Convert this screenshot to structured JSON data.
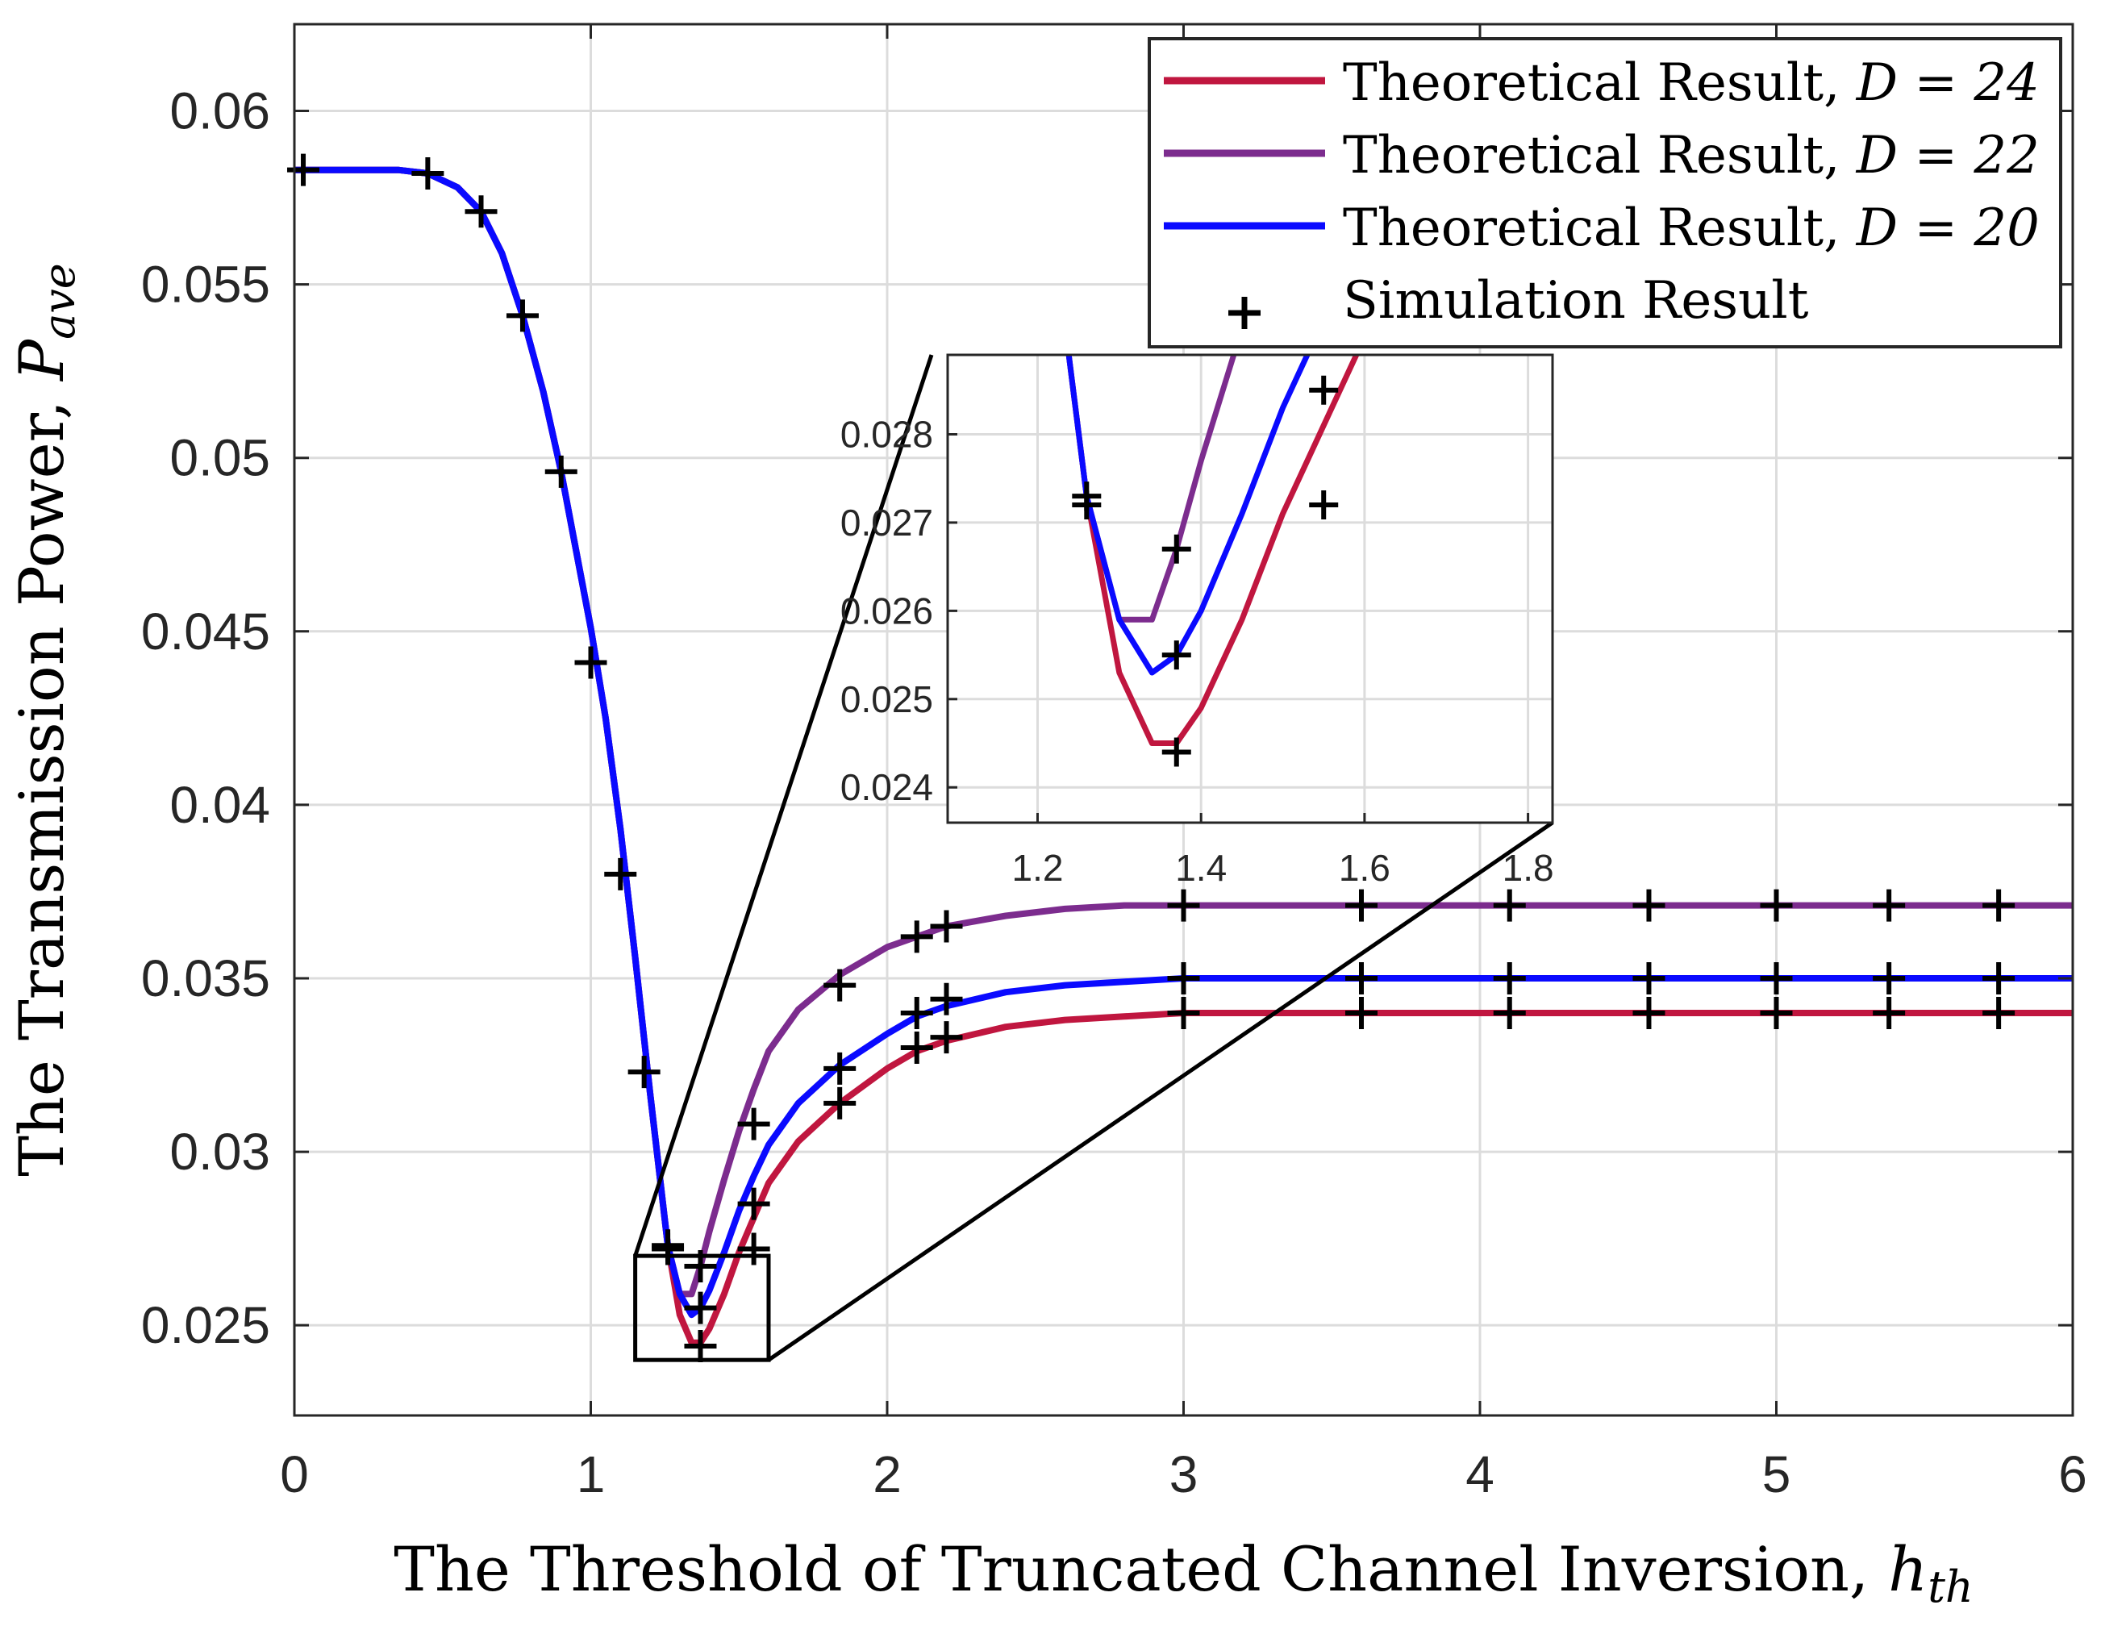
{
  "chart_data": {
    "type": "line",
    "xlabel": "The Threshold of Truncated Channel Inversion, ",
    "xlabel_var": "h",
    "xlabel_sub": "th",
    "ylabel": "The Transmission Power, ",
    "ylabel_var": "P",
    "ylabel_sub": "ave",
    "xlim": [
      0,
      6
    ],
    "ylim": [
      0.0224,
      0.0625
    ],
    "xticks": [
      "0",
      "1",
      "2",
      "3",
      "4",
      "5",
      "6"
    ],
    "yticks": [
      "0.025",
      "0.03",
      "0.035",
      "0.04",
      "0.045",
      "0.05",
      "0.055",
      "0.06"
    ],
    "legend_position": "top-right",
    "colors": {
      "d24": "#c0163f",
      "d22": "#7c2c8e",
      "d20": "#0a0aff",
      "sim": "#000000"
    },
    "series": [
      {
        "name": "Theoretical Result, ",
        "param": "D = 24",
        "key": "d24",
        "x": [
          0,
          0.35,
          0.45,
          0.55,
          0.63,
          0.7,
          0.77,
          0.84,
          0.9,
          0.96,
          1.0,
          1.05,
          1.1,
          1.15,
          1.2,
          1.26,
          1.3,
          1.34,
          1.37,
          1.4,
          1.45,
          1.5,
          1.55,
          1.6,
          1.7,
          1.84,
          2.0,
          2.1,
          2.2,
          2.4,
          2.6,
          2.8,
          3.0,
          3.5,
          4.0,
          5.0,
          6.0
        ],
        "y": [
          0.0583,
          0.0583,
          0.0582,
          0.0578,
          0.0571,
          0.0559,
          0.0541,
          0.0519,
          0.0496,
          0.0469,
          0.0451,
          0.0425,
          0.0393,
          0.0356,
          0.0317,
          0.0273,
          0.0253,
          0.0245,
          0.0245,
          0.0249,
          0.0259,
          0.0271,
          0.0281,
          0.0291,
          0.0303,
          0.0314,
          0.0324,
          0.0329,
          0.0332,
          0.0336,
          0.0338,
          0.0339,
          0.034,
          0.034,
          0.034,
          0.034,
          0.034
        ]
      },
      {
        "name": "Theoretical Result, ",
        "param": "D = 22",
        "key": "d22",
        "x": [
          0,
          0.35,
          0.45,
          0.55,
          0.63,
          0.7,
          0.77,
          0.84,
          0.9,
          0.96,
          1.0,
          1.05,
          1.1,
          1.15,
          1.2,
          1.26,
          1.3,
          1.34,
          1.37,
          1.4,
          1.45,
          1.5,
          1.55,
          1.6,
          1.7,
          1.84,
          2.0,
          2.1,
          2.2,
          2.4,
          2.6,
          2.8,
          3.0,
          3.5,
          4.0,
          5.0,
          6.0
        ],
        "y": [
          0.0583,
          0.0583,
          0.0582,
          0.0578,
          0.0571,
          0.0559,
          0.0541,
          0.0519,
          0.0496,
          0.0469,
          0.0451,
          0.0425,
          0.0393,
          0.0356,
          0.0317,
          0.0273,
          0.0259,
          0.0259,
          0.0267,
          0.0277,
          0.0292,
          0.0306,
          0.0318,
          0.0329,
          0.0341,
          0.0351,
          0.0359,
          0.0362,
          0.0365,
          0.0368,
          0.037,
          0.0371,
          0.0371,
          0.0371,
          0.0371,
          0.0371,
          0.0371
        ]
      },
      {
        "name": "Theoretical Result, ",
        "param": "D = 20",
        "key": "d20",
        "x": [
          0,
          0.35,
          0.45,
          0.55,
          0.63,
          0.7,
          0.77,
          0.84,
          0.9,
          0.96,
          1.0,
          1.05,
          1.1,
          1.15,
          1.2,
          1.26,
          1.3,
          1.34,
          1.37,
          1.4,
          1.45,
          1.5,
          1.55,
          1.6,
          1.7,
          1.84,
          2.0,
          2.1,
          2.2,
          2.4,
          2.6,
          2.8,
          3.0,
          3.5,
          4.0,
          5.0,
          6.0
        ],
        "y": [
          0.0583,
          0.0583,
          0.0582,
          0.0578,
          0.0571,
          0.0559,
          0.0541,
          0.0519,
          0.0496,
          0.0469,
          0.0451,
          0.0425,
          0.0393,
          0.0356,
          0.0317,
          0.0273,
          0.0259,
          0.0253,
          0.0255,
          0.026,
          0.0271,
          0.0283,
          0.0293,
          0.0302,
          0.0314,
          0.0325,
          0.0334,
          0.0339,
          0.0342,
          0.0346,
          0.0348,
          0.0349,
          0.035,
          0.035,
          0.035,
          0.035,
          0.035
        ]
      }
    ],
    "simulation": {
      "name": "Simulation Result",
      "points": [
        [
          0.03,
          0.0583
        ],
        [
          0.45,
          0.0582
        ],
        [
          0.63,
          0.0571
        ],
        [
          0.77,
          0.0541
        ],
        [
          0.9,
          0.0496
        ],
        [
          1.0,
          0.0441
        ],
        [
          1.1,
          0.038
        ],
        [
          1.18,
          0.0323
        ],
        [
          1.26,
          0.0273
        ],
        [
          1.26,
          0.0272
        ],
        [
          1.37,
          0.0267
        ],
        [
          1.37,
          0.0255
        ],
        [
          1.37,
          0.0244
        ],
        [
          1.55,
          0.0308
        ],
        [
          1.55,
          0.0285
        ],
        [
          1.55,
          0.0272
        ],
        [
          1.84,
          0.0348
        ],
        [
          1.84,
          0.0324
        ],
        [
          1.84,
          0.0314
        ],
        [
          2.1,
          0.0362
        ],
        [
          2.1,
          0.034
        ],
        [
          2.1,
          0.033
        ],
        [
          2.2,
          0.0365
        ],
        [
          2.2,
          0.0344
        ],
        [
          2.2,
          0.0333
        ],
        [
          3.0,
          0.0371
        ],
        [
          3.0,
          0.035
        ],
        [
          3.0,
          0.034
        ],
        [
          3.6,
          0.0371
        ],
        [
          3.6,
          0.035
        ],
        [
          3.6,
          0.034
        ],
        [
          4.1,
          0.0371
        ],
        [
          4.1,
          0.035
        ],
        [
          4.1,
          0.034
        ],
        [
          4.57,
          0.0371
        ],
        [
          4.57,
          0.035
        ],
        [
          4.57,
          0.034
        ],
        [
          5.0,
          0.0371
        ],
        [
          5.0,
          0.035
        ],
        [
          5.0,
          0.034
        ],
        [
          5.38,
          0.0371
        ],
        [
          5.38,
          0.035
        ],
        [
          5.38,
          0.034
        ],
        [
          5.75,
          0.0371
        ],
        [
          5.75,
          0.035
        ],
        [
          5.75,
          0.034
        ]
      ]
    },
    "zoom_box": {
      "xlim": [
        1.15,
        1.6
      ],
      "ylim": [
        0.024,
        0.027
      ]
    },
    "inset": {
      "xlim": [
        1.09,
        1.83
      ],
      "ylim": [
        0.0236,
        0.0289
      ],
      "xticks": [
        "1.2",
        "1.4",
        "1.6",
        "1.8"
      ],
      "yticks": [
        "0.024",
        "0.025",
        "0.026",
        "0.027",
        "0.028"
      ]
    }
  }
}
